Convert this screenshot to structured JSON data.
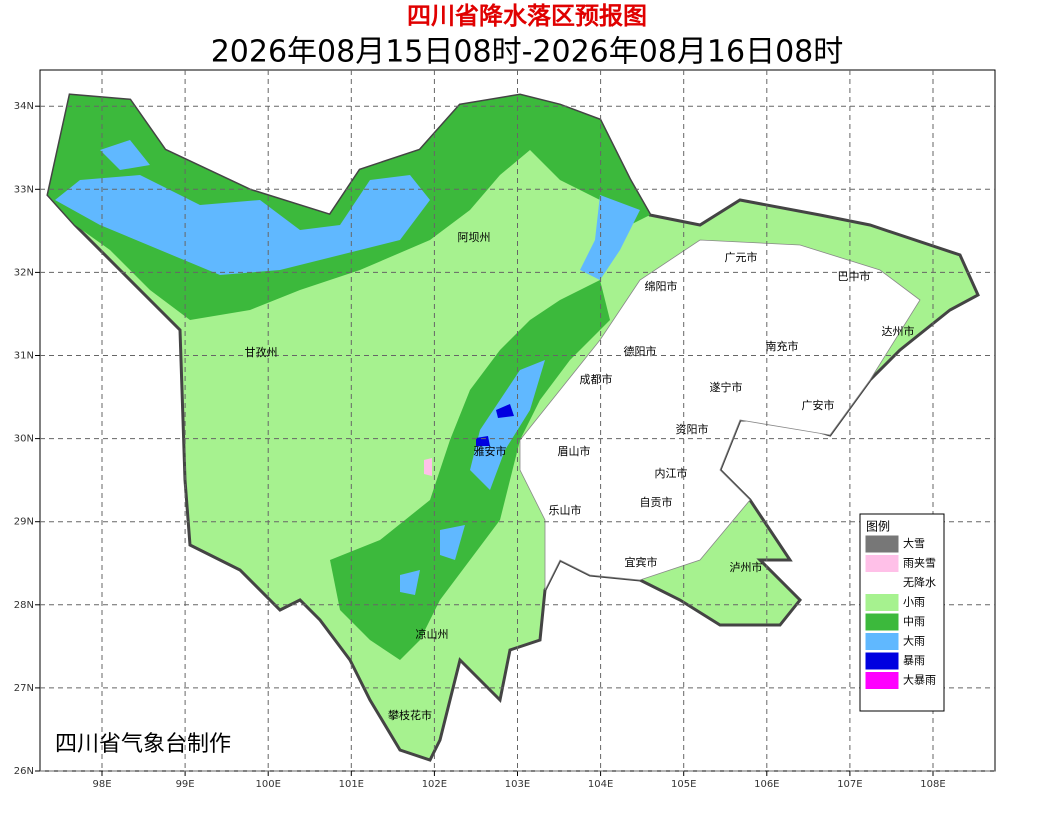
{
  "map": {
    "title": "四川省降水落区预报图",
    "subtitle": "2026年08月15日08时-2026年08月16日08时",
    "credit": "四川省气象台制作",
    "lon_ticks": [
      {
        "value": 98,
        "label": "98E"
      },
      {
        "value": 99,
        "label": "99E"
      },
      {
        "value": 100,
        "label": "100E"
      },
      {
        "value": 101,
        "label": "101E"
      },
      {
        "value": 102,
        "label": "102E"
      },
      {
        "value": 103,
        "label": "103E"
      },
      {
        "value": 104,
        "label": "104E"
      },
      {
        "value": 105,
        "label": "105E"
      },
      {
        "value": 106,
        "label": "106E"
      },
      {
        "value": 107,
        "label": "107E"
      },
      {
        "value": 108,
        "label": "108E"
      }
    ],
    "lat_ticks": [
      {
        "value": 26,
        "label": "26N"
      },
      {
        "value": 27,
        "label": "27N"
      },
      {
        "value": 28,
        "label": "28N"
      },
      {
        "value": 29,
        "label": "29N"
      },
      {
        "value": 30,
        "label": "30N"
      },
      {
        "value": 31,
        "label": "31N"
      },
      {
        "value": 32,
        "label": "32N"
      },
      {
        "value": 33,
        "label": "33N"
      },
      {
        "value": 34,
        "label": "34N"
      }
    ],
    "cities": [
      "阿坝州",
      "广元市",
      "巴中市",
      "绵阳市",
      "达州市",
      "甘孜州",
      "德阳市",
      "南充市",
      "成都市",
      "遂宁市",
      "广安市",
      "资阳市",
      "雅安市",
      "眉山市",
      "内江市",
      "自贡市",
      "乐山市",
      "宜宾市",
      "泸州市",
      "凉山州",
      "攀枝花市"
    ],
    "legend": {
      "title": "图例",
      "items": [
        {
          "name": "大雪",
          "color": "#777777"
        },
        {
          "name": "雨夹雪",
          "color": "#ffc0e8"
        },
        {
          "name": "无降水",
          "color": "#ffffff"
        },
        {
          "name": "小雨",
          "color": "#a6f28f"
        },
        {
          "name": "中雨",
          "color": "#3cb93c"
        },
        {
          "name": "大雨",
          "color": "#60b8ff"
        },
        {
          "name": "暴雨",
          "color": "#0000e0"
        },
        {
          "name": "大暴雨",
          "color": "#ff00ff"
        }
      ]
    }
  }
}
